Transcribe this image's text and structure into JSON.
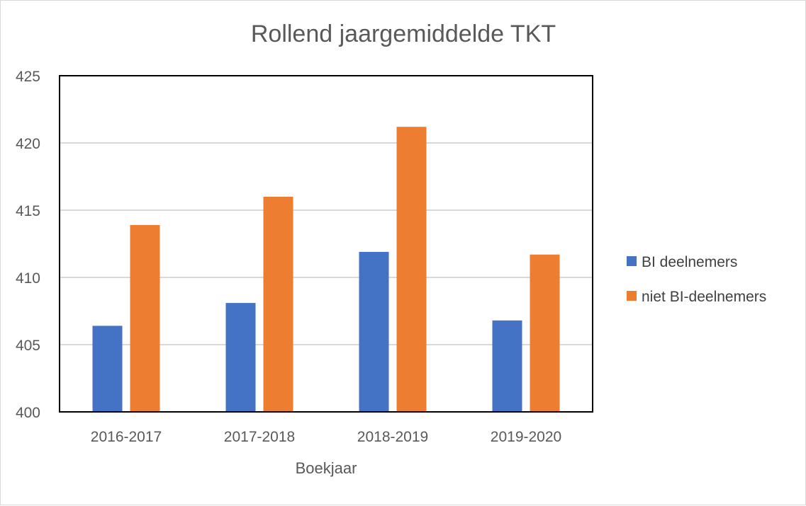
{
  "chart_data": {
    "type": "bar",
    "title": "Rollend jaargemiddelde TKT",
    "xlabel": "Boekjaar",
    "ylabel": "",
    "categories": [
      "2016-2017",
      "2017-2018",
      "2018-2019",
      "2019-2020"
    ],
    "series": [
      {
        "name": "BI deelnemers",
        "values": [
          406.4,
          408.1,
          411.9,
          406.8
        ],
        "color": "#4472C4"
      },
      {
        "name": "niet BI-deelnemers",
        "values": [
          413.9,
          416.0,
          421.2,
          411.7
        ],
        "color": "#ED7D31"
      }
    ],
    "ylim": [
      400,
      425
    ],
    "yticks": [
      400,
      405,
      410,
      415,
      420,
      425
    ],
    "grid": true,
    "legend_position": "right",
    "colors": {
      "grid": "#d9d9d9",
      "plot_border": "#000000",
      "text": "#595959"
    }
  }
}
